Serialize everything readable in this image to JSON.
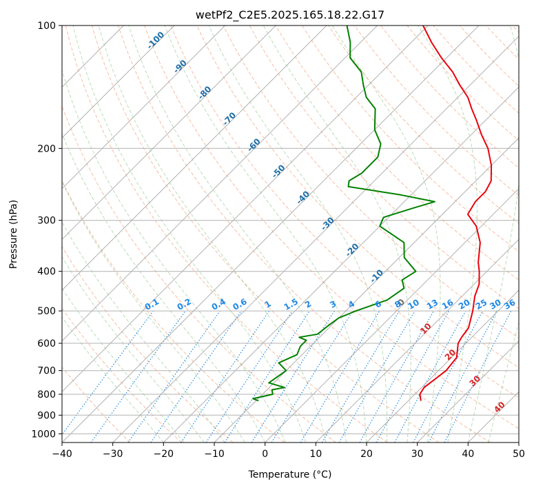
{
  "chart_data": {
    "type": "line",
    "chart_kind": "skew-T log-P",
    "title": "wetPf2_C2E5.2025.165.18.22.G17",
    "xlabel": "Temperature (°C)",
    "ylabel": "Pressure (hPa)",
    "xlim": [
      -40,
      50
    ],
    "ylim": [
      1050,
      100
    ],
    "y_scale": "log",
    "skew_degrees": 45,
    "grid": true,
    "x_ticks": [
      -40,
      -30,
      -20,
      -10,
      0,
      10,
      20,
      30,
      40,
      50
    ],
    "y_ticks": [
      100,
      200,
      300,
      400,
      500,
      600,
      700,
      800,
      900,
      1000
    ],
    "isotherm_labels": [
      {
        "text": "-100",
        "value": -100
      },
      {
        "text": "-90",
        "value": -90
      },
      {
        "text": "-80",
        "value": -80
      },
      {
        "text": "-70",
        "value": -70
      },
      {
        "text": "-60",
        "value": -60
      },
      {
        "text": "-50",
        "value": -50
      },
      {
        "text": "-40",
        "value": -40
      },
      {
        "text": "-30",
        "value": -30
      },
      {
        "text": "-20",
        "value": -20
      },
      {
        "text": "-10",
        "value": -10
      },
      {
        "text": "0",
        "value": 0
      },
      {
        "text": "10",
        "value": 10
      },
      {
        "text": "20",
        "value": 20
      },
      {
        "text": "30",
        "value": 30
      },
      {
        "text": "40",
        "value": 40
      }
    ],
    "mixing_ratio_labels": [
      "0.1",
      "0.2",
      "0.4",
      "0.6",
      "1",
      "1.5",
      "2",
      "3",
      "4",
      "6",
      "8",
      "10",
      "13",
      "16",
      "20",
      "25",
      "30",
      "36"
    ],
    "mixing_ratio_values": [
      0.1,
      0.2,
      0.4,
      0.6,
      1,
      1.5,
      2,
      3,
      4,
      6,
      8,
      10,
      13,
      16,
      20,
      25,
      30,
      36
    ],
    "series": [
      {
        "name": "",
        "role": "temperature",
        "color": "#e8000b",
        "points": [
          [
            830,
            22.5
          ],
          [
            800,
            21
          ],
          [
            770,
            20.5
          ],
          [
            700,
            21.5
          ],
          [
            650,
            21
          ],
          [
            600,
            18.5
          ],
          [
            580,
            18
          ],
          [
            550,
            17.5
          ],
          [
            500,
            15
          ],
          [
            460,
            12.5
          ],
          [
            430,
            11
          ],
          [
            400,
            8.5
          ],
          [
            380,
            6.5
          ],
          [
            340,
            3
          ],
          [
            310,
            -1
          ],
          [
            290,
            -5
          ],
          [
            270,
            -6
          ],
          [
            255,
            -6
          ],
          [
            240,
            -7
          ],
          [
            220,
            -10
          ],
          [
            200,
            -14
          ],
          [
            185,
            -18
          ],
          [
            170,
            -22
          ],
          [
            160,
            -25
          ],
          [
            150,
            -28
          ],
          [
            140,
            -32
          ],
          [
            130,
            -36
          ],
          [
            120,
            -41
          ],
          [
            110,
            -46
          ],
          [
            100,
            -51
          ]
        ]
      },
      {
        "name": "",
        "role": "dewpoint",
        "color": "#008000",
        "points": [
          [
            830,
            -9.5
          ],
          [
            820,
            -11
          ],
          [
            800,
            -8
          ],
          [
            780,
            -9
          ],
          [
            770,
            -7
          ],
          [
            750,
            -11
          ],
          [
            700,
            -10
          ],
          [
            670,
            -13
          ],
          [
            640,
            -11
          ],
          [
            610,
            -12
          ],
          [
            590,
            -12
          ],
          [
            580,
            -14
          ],
          [
            570,
            -11
          ],
          [
            540,
            -10.5
          ],
          [
            520,
            -10
          ],
          [
            500,
            -8
          ],
          [
            470,
            -4
          ],
          [
            440,
            -3
          ],
          [
            420,
            -5
          ],
          [
            400,
            -4
          ],
          [
            370,
            -9
          ],
          [
            340,
            -12
          ],
          [
            310,
            -20
          ],
          [
            295,
            -21
          ],
          [
            280,
            -17
          ],
          [
            270,
            -14
          ],
          [
            260,
            -22
          ],
          [
            248,
            -34
          ],
          [
            240,
            -35
          ],
          [
            230,
            -34
          ],
          [
            210,
            -34
          ],
          [
            195,
            -36
          ],
          [
            180,
            -40
          ],
          [
            160,
            -44
          ],
          [
            150,
            -48
          ],
          [
            140,
            -51
          ],
          [
            130,
            -54
          ],
          [
            120,
            -59
          ],
          [
            110,
            -62
          ],
          [
            100,
            -66
          ]
        ]
      }
    ],
    "colors": {
      "dry_adiabat": "#f4a582",
      "moist_adiabat": "#7fbf7b",
      "mixing_ratio": "#1e88e5",
      "isotherm_label": "#1f6fa8",
      "isotherm_label_warm": "#d62728",
      "grid": "#b0b0b0"
    }
  }
}
